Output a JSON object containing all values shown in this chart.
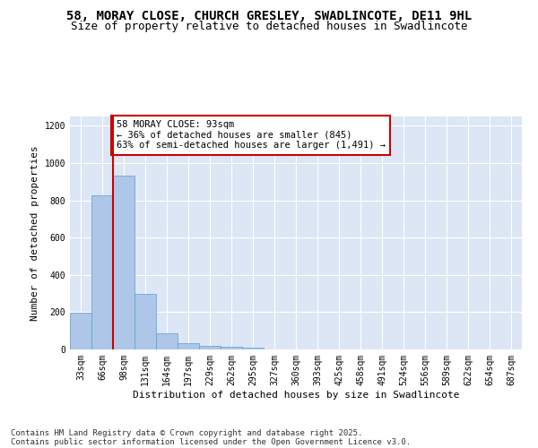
{
  "title_line1": "58, MORAY CLOSE, CHURCH GRESLEY, SWADLINCOTE, DE11 9HL",
  "title_line2": "Size of property relative to detached houses in Swadlincote",
  "xlabel": "Distribution of detached houses by size in Swadlincote",
  "ylabel": "Number of detached properties",
  "categories": [
    "33sqm",
    "66sqm",
    "98sqm",
    "131sqm",
    "164sqm",
    "197sqm",
    "229sqm",
    "262sqm",
    "295sqm",
    "327sqm",
    "360sqm",
    "393sqm",
    "425sqm",
    "458sqm",
    "491sqm",
    "524sqm",
    "556sqm",
    "589sqm",
    "622sqm",
    "654sqm",
    "687sqm"
  ],
  "values": [
    195,
    825,
    935,
    300,
    85,
    35,
    20,
    15,
    10,
    0,
    0,
    0,
    0,
    0,
    0,
    0,
    0,
    0,
    0,
    0,
    0
  ],
  "bar_color": "#aec6e8",
  "bar_edge_color": "#5a9fd4",
  "vline_color": "#cc0000",
  "annotation_text": "58 MORAY CLOSE: 93sqm\n← 36% of detached houses are smaller (845)\n63% of semi-detached houses are larger (1,491) →",
  "annotation_box_color": "#ffffff",
  "annotation_box_edge": "#cc0000",
  "ylim": [
    0,
    1250
  ],
  "yticks": [
    0,
    200,
    400,
    600,
    800,
    1000,
    1200
  ],
  "background_color": "#dce6f5",
  "grid_color": "#ffffff",
  "fig_background": "#ffffff",
  "footer_line1": "Contains HM Land Registry data © Crown copyright and database right 2025.",
  "footer_line2": "Contains public sector information licensed under the Open Government Licence v3.0.",
  "title_fontsize": 10,
  "subtitle_fontsize": 9,
  "axis_label_fontsize": 8,
  "tick_fontsize": 7,
  "annotation_fontsize": 7.5,
  "footer_fontsize": 6.5
}
